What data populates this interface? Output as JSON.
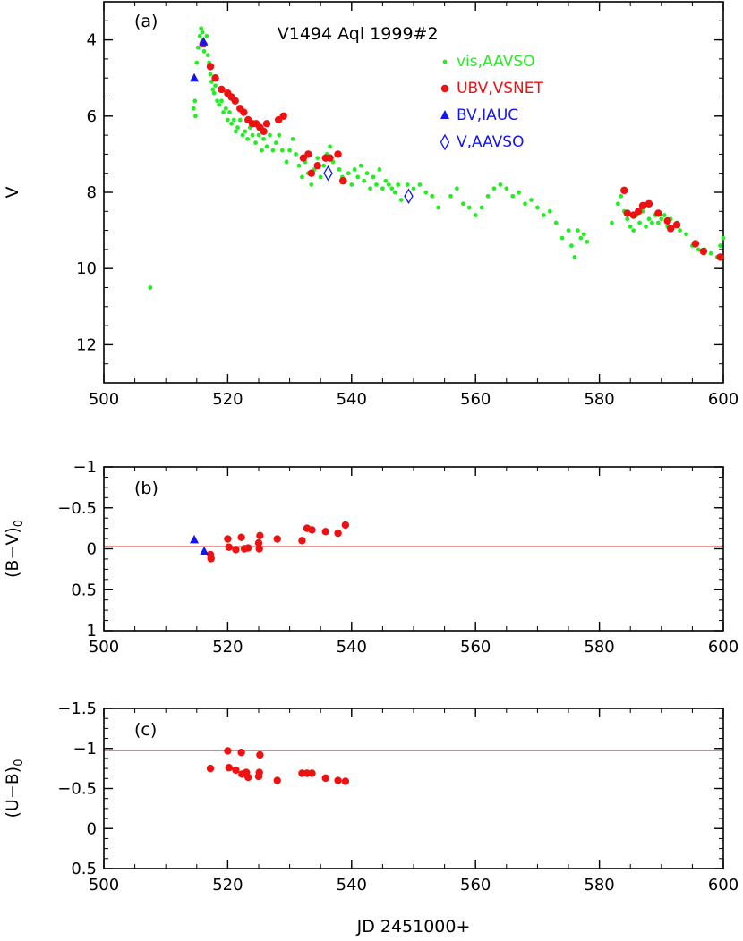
{
  "chart_data": [
    {
      "type": "scatter",
      "panel": "(a)",
      "title": "V1494 Aql 1999#2",
      "ylabel": "V",
      "xlim": [
        500,
        600
      ],
      "ylim": [
        13,
        3
      ],
      "y_inverted": true,
      "x_ticks": [
        "500",
        "520",
        "540",
        "560",
        "580",
        "600"
      ],
      "y_ticks": [
        "4",
        "6",
        "8",
        "10",
        "12"
      ],
      "legend_position": "top-right",
      "series": [
        {
          "name": "vis,AAVSO",
          "color": "#22ee22",
          "marker": "small-circle",
          "points": [
            [
              507.5,
              10.5
            ],
            [
              514.5,
              5.8
            ],
            [
              514.7,
              5.6
            ],
            [
              514.8,
              6.0
            ],
            [
              515.0,
              4.6
            ],
            [
              515.2,
              4.2
            ],
            [
              515.5,
              3.9
            ],
            [
              515.7,
              3.7
            ],
            [
              515.9,
              3.8
            ],
            [
              516.0,
              4.0
            ],
            [
              516.2,
              4.3
            ],
            [
              516.4,
              4.1
            ],
            [
              516.6,
              3.9
            ],
            [
              516.8,
              4.4
            ],
            [
              517.0,
              4.6
            ],
            [
              517.2,
              4.9
            ],
            [
              517.4,
              5.1
            ],
            [
              517.6,
              5.3
            ],
            [
              517.8,
              5.4
            ],
            [
              518.0,
              5.2
            ],
            [
              518.3,
              5.6
            ],
            [
              518.6,
              5.7
            ],
            [
              519.0,
              5.6
            ],
            [
              519.3,
              5.9
            ],
            [
              519.7,
              5.8
            ],
            [
              520.0,
              6.1
            ],
            [
              520.3,
              5.9
            ],
            [
              520.6,
              6.2
            ],
            [
              521.0,
              6.1
            ],
            [
              521.3,
              6.4
            ],
            [
              521.6,
              6.3
            ],
            [
              522.0,
              6.1
            ],
            [
              522.4,
              6.5
            ],
            [
              522.8,
              6.4
            ],
            [
              523.2,
              6.6
            ],
            [
              523.6,
              6.3
            ],
            [
              524.0,
              6.5
            ],
            [
              524.5,
              6.7
            ],
            [
              525.0,
              6.5
            ],
            [
              525.5,
              6.9
            ],
            [
              525.8,
              6.6
            ],
            [
              526.3,
              6.8
            ],
            [
              526.8,
              6.5
            ],
            [
              527.3,
              6.9
            ],
            [
              527.8,
              6.7
            ],
            [
              528.3,
              6.5
            ],
            [
              528.8,
              6.9
            ],
            [
              529.5,
              7.2
            ],
            [
              530.0,
              6.9
            ],
            [
              530.5,
              6.6
            ],
            [
              531.0,
              7.0
            ],
            [
              531.5,
              7.3
            ],
            [
              532.0,
              7.6
            ],
            [
              532.5,
              7.2
            ],
            [
              533.0,
              7.5
            ],
            [
              533.5,
              7.8
            ],
            [
              534.0,
              7.4
            ],
            [
              534.5,
              7.1
            ],
            [
              535.0,
              7.6
            ],
            [
              535.5,
              7.3
            ],
            [
              536.0,
              7.0
            ],
            [
              536.5,
              6.8
            ],
            [
              537.0,
              7.2
            ],
            [
              537.5,
              7.0
            ],
            [
              538.0,
              7.4
            ],
            [
              538.5,
              7.6
            ],
            [
              539.0,
              7.7
            ],
            [
              539.5,
              7.5
            ],
            [
              540.0,
              7.8
            ],
            [
              540.5,
              7.4
            ],
            [
              541.0,
              7.6
            ],
            [
              541.5,
              7.3
            ],
            [
              542.0,
              7.7
            ],
            [
              542.5,
              7.5
            ],
            [
              543.0,
              7.9
            ],
            [
              543.5,
              7.6
            ],
            [
              544.0,
              7.8
            ],
            [
              544.5,
              7.4
            ],
            [
              545.0,
              7.9
            ],
            [
              545.5,
              7.7
            ],
            [
              546.0,
              7.8
            ],
            [
              546.5,
              7.9
            ],
            [
              547.0,
              8.0
            ],
            [
              547.5,
              7.8
            ],
            [
              548.0,
              8.2
            ],
            [
              549.0,
              7.8
            ],
            [
              550.0,
              7.9
            ],
            [
              551.0,
              7.8
            ],
            [
              552.0,
              8.0
            ],
            [
              553.0,
              8.1
            ],
            [
              554.0,
              8.4
            ],
            [
              556.0,
              8.1
            ],
            [
              557.0,
              7.9
            ],
            [
              558.0,
              8.3
            ],
            [
              559.0,
              8.4
            ],
            [
              560.0,
              8.6
            ],
            [
              561.0,
              8.4
            ],
            [
              562.0,
              8.1
            ],
            [
              563.0,
              7.9
            ],
            [
              564.0,
              7.8
            ],
            [
              565.0,
              7.9
            ],
            [
              566.0,
              8.1
            ],
            [
              567.0,
              8.0
            ],
            [
              568.0,
              8.3
            ],
            [
              569.0,
              8.2
            ],
            [
              570.0,
              8.4
            ],
            [
              571.0,
              8.6
            ],
            [
              572.0,
              8.5
            ],
            [
              573.0,
              8.8
            ],
            [
              574.0,
              9.2
            ],
            [
              575.0,
              9.0
            ],
            [
              575.5,
              9.4
            ],
            [
              576.0,
              9.7
            ],
            [
              576.5,
              9.0
            ],
            [
              577.0,
              9.2
            ],
            [
              577.5,
              9.1
            ],
            [
              578.0,
              9.3
            ],
            [
              582.0,
              8.8
            ],
            [
              583.0,
              8.3
            ],
            [
              583.5,
              8.1
            ],
            [
              584.0,
              8.5
            ],
            [
              584.5,
              8.7
            ],
            [
              585.0,
              8.9
            ],
            [
              585.5,
              9.0
            ],
            [
              586.0,
              8.6
            ],
            [
              586.5,
              8.8
            ],
            [
              587.0,
              8.5
            ],
            [
              587.5,
              8.9
            ],
            [
              588.0,
              8.7
            ],
            [
              588.5,
              8.8
            ],
            [
              589.0,
              8.6
            ],
            [
              589.5,
              8.8
            ],
            [
              590.0,
              8.7
            ],
            [
              590.5,
              8.6
            ],
            [
              591.0,
              8.9
            ],
            [
              591.5,
              8.7
            ],
            [
              592.0,
              8.9
            ],
            [
              592.5,
              8.8
            ],
            [
              593.0,
              9.0
            ],
            [
              594.0,
              9.1
            ],
            [
              595.0,
              9.4
            ],
            [
              596.0,
              9.5
            ],
            [
              597.0,
              9.5
            ],
            [
              598.0,
              9.6
            ],
            [
              599.0,
              9.7
            ],
            [
              599.5,
              9.4
            ],
            [
              600.0,
              9.2
            ]
          ]
        },
        {
          "name": "UBV,VSNET",
          "color": "#ee1111",
          "marker": "circle",
          "points": [
            [
              516.0,
              4.1
            ],
            [
              517.2,
              4.7
            ],
            [
              518.0,
              5.0
            ],
            [
              519.0,
              5.3
            ],
            [
              520.0,
              5.4
            ],
            [
              520.6,
              5.5
            ],
            [
              521.2,
              5.6
            ],
            [
              522.0,
              5.8
            ],
            [
              522.6,
              5.9
            ],
            [
              523.3,
              6.1
            ],
            [
              524.0,
              6.2
            ],
            [
              524.6,
              6.2
            ],
            [
              525.2,
              6.3
            ],
            [
              525.8,
              6.4
            ],
            [
              526.3,
              6.2
            ],
            [
              528.2,
              6.1
            ],
            [
              529.0,
              6.0
            ],
            [
              532.2,
              7.1
            ],
            [
              533.0,
              7.0
            ],
            [
              533.5,
              7.5
            ],
            [
              534.5,
              7.3
            ],
            [
              535.8,
              7.1
            ],
            [
              536.5,
              7.1
            ],
            [
              537.8,
              7.0
            ],
            [
              538.6,
              7.7
            ],
            [
              584.0,
              7.95
            ],
            [
              584.5,
              8.55
            ],
            [
              585.5,
              8.6
            ],
            [
              586.3,
              8.5
            ],
            [
              587.0,
              8.35
            ],
            [
              588.0,
              8.3
            ],
            [
              589.5,
              8.55
            ],
            [
              591.0,
              8.75
            ],
            [
              591.5,
              8.95
            ],
            [
              592.5,
              8.85
            ],
            [
              595.5,
              9.35
            ],
            [
              596.8,
              9.55
            ],
            [
              599.5,
              9.7
            ]
          ]
        },
        {
          "name": "BV,IAUC",
          "color": "#1515ee",
          "marker": "triangle",
          "points": [
            [
              514.6,
              5.0
            ],
            [
              516.1,
              4.05
            ]
          ]
        },
        {
          "name": "V,AAVSO",
          "color": "#1515ee",
          "marker": "open-diamond",
          "points": [
            [
              536.2,
              7.5
            ],
            [
              549.2,
              8.1
            ]
          ]
        }
      ]
    },
    {
      "type": "scatter",
      "panel": "(b)",
      "ylabel": "(B−V)",
      "ylabel_sub": "0",
      "xlim": [
        500,
        600
      ],
      "ylim": [
        1,
        -1
      ],
      "y_inverted": true,
      "x_ticks": [
        "500",
        "520",
        "540",
        "560",
        "580",
        "600"
      ],
      "y_ticks": [
        "−1",
        "−0.5",
        "0",
        "0.5",
        "1"
      ],
      "reference_line": -0.03,
      "series": [
        {
          "name": "UBV,VSNET",
          "color": "#ee1111",
          "marker": "circle",
          "points": [
            [
              517.2,
              0.07
            ],
            [
              517.3,
              0.12
            ],
            [
              520.0,
              -0.12
            ],
            [
              520.2,
              -0.02
            ],
            [
              521.3,
              0.01
            ],
            [
              522.2,
              -0.14
            ],
            [
              522.7,
              0.0
            ],
            [
              523.3,
              -0.01
            ],
            [
              525.0,
              -0.07
            ],
            [
              525.1,
              0.0
            ],
            [
              525.2,
              -0.16
            ],
            [
              528.0,
              -0.12
            ],
            [
              532.0,
              -0.1
            ],
            [
              532.8,
              -0.25
            ],
            [
              533.6,
              -0.23
            ],
            [
              535.8,
              -0.21
            ],
            [
              537.8,
              -0.19
            ],
            [
              539.0,
              -0.29
            ]
          ]
        },
        {
          "name": "BV,IAUC",
          "color": "#1515ee",
          "marker": "triangle",
          "points": [
            [
              514.6,
              -0.11
            ],
            [
              516.2,
              0.03
            ]
          ]
        }
      ]
    },
    {
      "type": "scatter",
      "panel": "(c)",
      "ylabel": "(U−B)",
      "ylabel_sub": "0",
      "xlim": [
        500,
        600
      ],
      "ylim": [
        0.5,
        -1.5
      ],
      "y_inverted": true,
      "x_ticks": [
        "500",
        "520",
        "540",
        "560",
        "580",
        "600"
      ],
      "y_ticks": [
        "−1.5",
        "−1",
        "−0.5",
        "0",
        "0.5"
      ],
      "xlabel": "JD 2451000+",
      "reference_line": -0.97,
      "series": [
        {
          "name": "UBV,VSNET",
          "color": "#ee1111",
          "marker": "circle",
          "points": [
            [
              517.2,
              -0.75
            ],
            [
              520.0,
              -0.97
            ],
            [
              520.2,
              -0.76
            ],
            [
              521.3,
              -0.73
            ],
            [
              522.2,
              -0.95
            ],
            [
              522.3,
              -0.68
            ],
            [
              523.0,
              -0.7
            ],
            [
              523.3,
              -0.64
            ],
            [
              525.0,
              -0.65
            ],
            [
              525.1,
              -0.7
            ],
            [
              525.2,
              -0.92
            ],
            [
              528.0,
              -0.6
            ],
            [
              532.0,
              -0.69
            ],
            [
              532.8,
              -0.69
            ],
            [
              533.6,
              -0.69
            ],
            [
              535.8,
              -0.63
            ],
            [
              537.8,
              -0.6
            ],
            [
              539.0,
              -0.59
            ]
          ]
        }
      ]
    }
  ]
}
